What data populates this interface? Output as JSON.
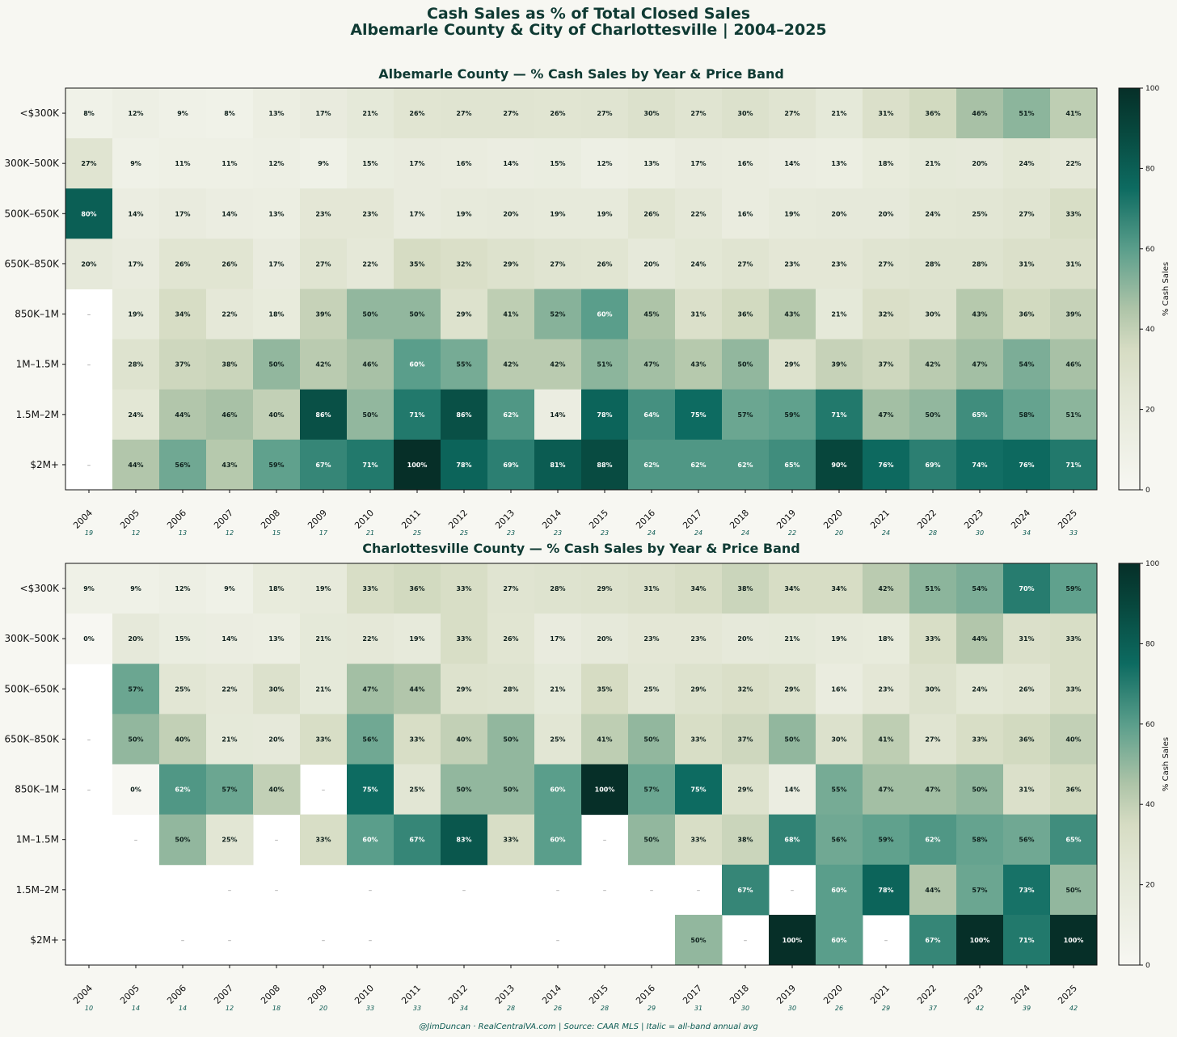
{
  "title_line1": "Cash Sales as % of Total Closed Sales",
  "title_line2": "Albemarle County & City of Charlottesville | 2004–2025",
  "footer": "@JimDuncan · RealCentralVA.com  |  Source: CAAR MLS  |  Italic = all-band annual avg",
  "colors": {
    "background": "#f7f7f2",
    "low": "#f7f7f2",
    "mid": "#d6dcc3",
    "teal": "#5a9e8b",
    "high": "#073a30"
  },
  "chart_data": [
    {
      "type": "heatmap",
      "title": "Albemarle County — % Cash Sales by Year & Price Band",
      "colorbar_label": "% Cash Sales",
      "colorbar_ticks": [
        "0",
        "20",
        "40",
        "60",
        "80",
        "100"
      ],
      "zlim": [
        0,
        100
      ],
      "years": [
        "2004",
        "2005",
        "2006",
        "2007",
        "2008",
        "2009",
        "2010",
        "2011",
        "2012",
        "2013",
        "2014",
        "2015",
        "2016",
        "2017",
        "2018",
        "2019",
        "2020",
        "2021",
        "2022",
        "2023",
        "2024",
        "2025"
      ],
      "bands": [
        "<$300K",
        "300K–500K",
        "500K–650K",
        "650K–850K",
        "850K–1M",
        "1M–1.5M",
        "1.5M–2M",
        "$2M+"
      ],
      "values": [
        [
          8,
          12,
          9,
          8,
          13,
          17,
          21,
          26,
          27,
          27,
          26,
          27,
          30,
          27,
          30,
          27,
          21,
          31,
          36,
          46,
          51,
          41
        ],
        [
          27,
          9,
          11,
          11,
          12,
          9,
          15,
          17,
          16,
          14,
          15,
          12,
          13,
          17,
          16,
          14,
          13,
          18,
          21,
          20,
          24,
          22
        ],
        [
          80,
          14,
          17,
          14,
          13,
          23,
          23,
          17,
          19,
          20,
          19,
          19,
          26,
          22,
          16,
          19,
          20,
          20,
          24,
          25,
          27,
          33
        ],
        [
          20,
          17,
          26,
          26,
          17,
          27,
          22,
          35,
          32,
          29,
          27,
          26,
          20,
          24,
          27,
          23,
          23,
          27,
          28,
          28,
          31,
          31
        ],
        [
          "–",
          19,
          34,
          22,
          18,
          39,
          50,
          50,
          29,
          41,
          52,
          60,
          45,
          31,
          36,
          43,
          21,
          32,
          30,
          43,
          36,
          39
        ],
        [
          "–",
          28,
          37,
          38,
          50,
          42,
          46,
          60,
          55,
          42,
          42,
          51,
          47,
          43,
          50,
          29,
          39,
          37,
          42,
          47,
          54,
          46
        ],
        [
          null,
          24,
          44,
          46,
          40,
          86,
          50,
          71,
          86,
          62,
          14,
          78,
          64,
          75,
          57,
          59,
          71,
          47,
          50,
          65,
          58,
          51
        ],
        [
          "–",
          44,
          56,
          43,
          59,
          67,
          71,
          100,
          78,
          69,
          81,
          88,
          62,
          62,
          62,
          65,
          90,
          76,
          69,
          74,
          76,
          71
        ]
      ],
      "annual_avg": [
        "19",
        "12",
        "13",
        "12",
        "15",
        "17",
        "21",
        "25",
        "25",
        "23",
        "23",
        "23",
        "24",
        "24",
        "24",
        "22",
        "20",
        "24",
        "28",
        "30",
        "34",
        "33"
      ]
    },
    {
      "type": "heatmap",
      "title": "Charlottesville County — % Cash Sales by Year & Price Band",
      "colorbar_label": "% Cash Sales",
      "colorbar_ticks": [
        "0",
        "20",
        "40",
        "60",
        "80",
        "100"
      ],
      "zlim": [
        0,
        100
      ],
      "years": [
        "2004",
        "2005",
        "2006",
        "2007",
        "2008",
        "2009",
        "2010",
        "2011",
        "2012",
        "2013",
        "2014",
        "2015",
        "2016",
        "2017",
        "2018",
        "2019",
        "2020",
        "2021",
        "2022",
        "2023",
        "2024",
        "2025"
      ],
      "bands": [
        "<$300K",
        "300K–500K",
        "500K–650K",
        "650K–850K",
        "850K–1M",
        "1M–1.5M",
        "1.5M–2M",
        "$2M+"
      ],
      "values": [
        [
          9,
          9,
          12,
          9,
          18,
          19,
          33,
          36,
          33,
          27,
          28,
          29,
          31,
          34,
          38,
          34,
          34,
          42,
          51,
          54,
          70,
          59
        ],
        [
          0,
          20,
          15,
          14,
          13,
          21,
          22,
          19,
          33,
          26,
          17,
          20,
          23,
          23,
          20,
          21,
          19,
          18,
          33,
          44,
          31,
          33
        ],
        [
          null,
          57,
          25,
          22,
          30,
          21,
          47,
          44,
          29,
          28,
          21,
          35,
          25,
          29,
          32,
          29,
          16,
          23,
          30,
          24,
          26,
          33
        ],
        [
          "–",
          50,
          40,
          21,
          20,
          33,
          56,
          33,
          40,
          50,
          25,
          41,
          50,
          33,
          37,
          50,
          30,
          41,
          27,
          33,
          36,
          40
        ],
        [
          "–",
          0,
          62,
          57,
          40,
          "–",
          75,
          25,
          50,
          50,
          60,
          100,
          57,
          75,
          29,
          14,
          55,
          47,
          47,
          50,
          31,
          36
        ],
        [
          null,
          "–",
          50,
          25,
          "–",
          33,
          60,
          67,
          83,
          33,
          60,
          "–",
          50,
          33,
          38,
          68,
          56,
          59,
          62,
          58,
          56,
          65
        ],
        [
          null,
          null,
          null,
          "–",
          "–",
          null,
          "–",
          null,
          "–",
          null,
          "–",
          "–",
          "–",
          "–",
          67,
          "–",
          60,
          78,
          44,
          57,
          73,
          50
        ],
        [
          null,
          null,
          "–",
          "–",
          null,
          "–",
          "–",
          null,
          null,
          null,
          "–",
          null,
          null,
          50,
          "–",
          100,
          60,
          "–",
          67,
          100,
          71,
          100
        ]
      ],
      "annual_avg": [
        "10",
        "14",
        "14",
        "12",
        "18",
        "20",
        "33",
        "33",
        "34",
        "28",
        "26",
        "28",
        "29",
        "31",
        "30",
        "30",
        "26",
        "29",
        "37",
        "42",
        "39",
        "42"
      ]
    }
  ]
}
